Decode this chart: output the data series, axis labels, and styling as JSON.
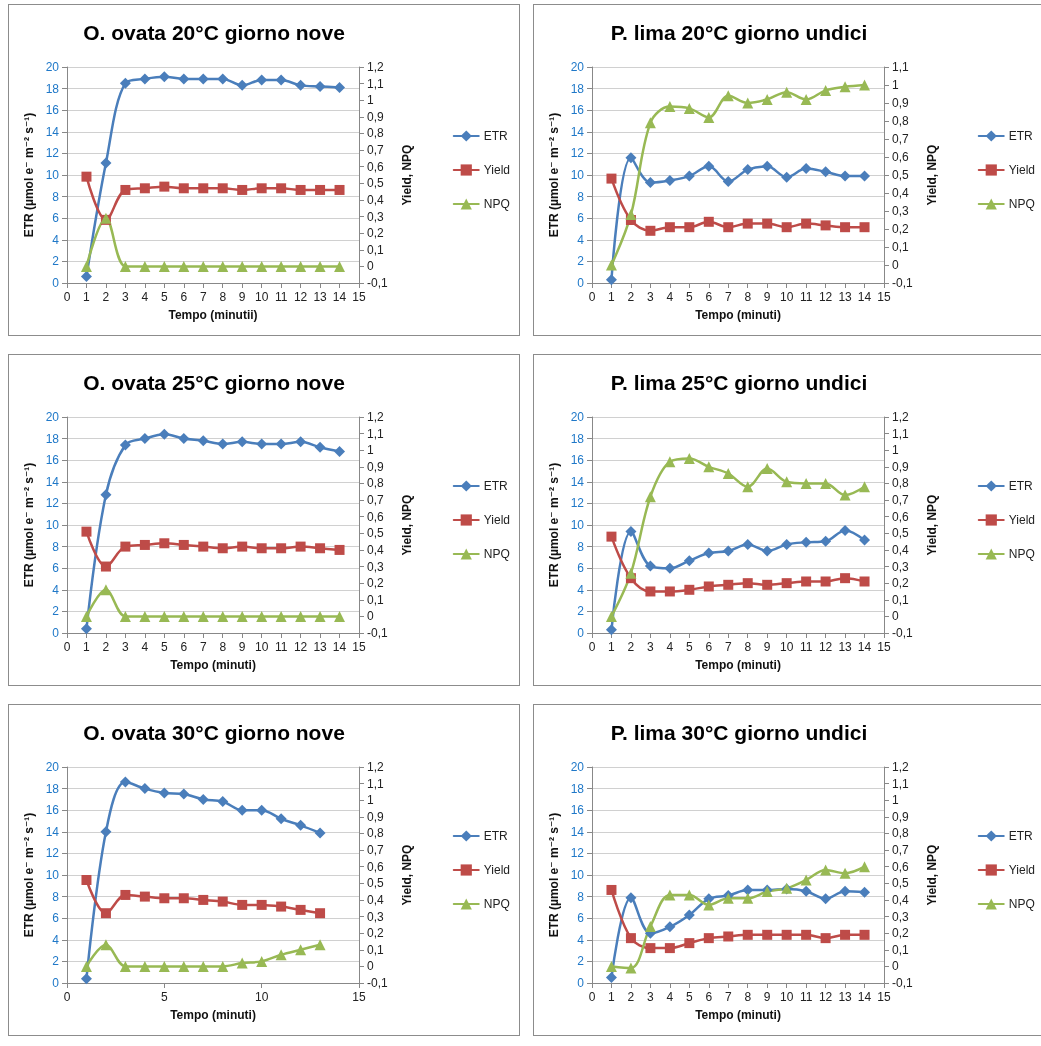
{
  "chart_data": [
    {
      "type": "line",
      "title": "O. ovata 20°C giorno nove",
      "xlabel": "Tempo (minutii)",
      "ylabel": "ETR (µmol e⁻ m⁻² s⁻¹)",
      "y2label": "Yield, NPQ",
      "x": [
        1,
        2,
        3,
        4,
        5,
        6,
        7,
        8,
        9,
        10,
        11,
        12,
        13,
        14
      ],
      "xlim": [
        0,
        15
      ],
      "xticks": [
        0,
        1,
        2,
        3,
        4,
        5,
        6,
        7,
        8,
        9,
        10,
        11,
        12,
        13,
        14,
        15
      ],
      "ylim": [
        0,
        20
      ],
      "yticks": [
        0,
        2,
        4,
        6,
        8,
        10,
        12,
        14,
        16,
        18,
        20
      ],
      "y2lim": [
        -0.1,
        1.2
      ],
      "y2ticks": [
        {
          "value": -0.1,
          "label": "-0,1"
        },
        {
          "value": 0,
          "label": "0"
        },
        {
          "value": 0.1,
          "label": "0,1"
        },
        {
          "value": 0.2,
          "label": "0,2"
        },
        {
          "value": 0.3,
          "label": "0,3"
        },
        {
          "value": 0.4,
          "label": "0,4"
        },
        {
          "value": 0.5,
          "label": "0,5"
        },
        {
          "value": 0.6,
          "label": "0,6"
        },
        {
          "value": 0.7,
          "label": "0,7"
        },
        {
          "value": 0.8,
          "label": "0,8"
        },
        {
          "value": 0.9,
          "label": "0,9"
        },
        {
          "value": 1,
          "label": "1"
        },
        {
          "value": 1.1,
          "label": "1,1"
        },
        {
          "value": 1.2,
          "label": "1,2"
        }
      ],
      "grid": "y",
      "legend": "right",
      "series": [
        {
          "name": "ETR",
          "color": "#4a7ebb",
          "marker": "diamond",
          "values": [
            0.6,
            11.1,
            18.5,
            18.9,
            19.1,
            18.9,
            18.9,
            18.9,
            18.3,
            18.8,
            18.8,
            18.3,
            18.2,
            18.1
          ]
        },
        {
          "name": "Yield",
          "color": "#be4b48",
          "marker": "square",
          "axis": "y2",
          "values": [
            0.54,
            0.28,
            0.46,
            0.47,
            0.48,
            0.47,
            0.47,
            0.47,
            0.46,
            0.47,
            0.47,
            0.46,
            0.46,
            0.46
          ]
        },
        {
          "name": "NPQ",
          "color": "#98b954",
          "marker": "triangle",
          "axis": "y2",
          "values": [
            0,
            0.29,
            0,
            0,
            0,
            0,
            0,
            0,
            0,
            0,
            0,
            0,
            0,
            0
          ]
        }
      ]
    },
    {
      "type": "line",
      "title": "P. lima 20°C giorno undici",
      "xlabel": "Tempo (minuti)",
      "ylabel": "ETR (µmol e⁻ m⁻² s⁻¹)",
      "y2label": "Yield, NPQ",
      "x": [
        1,
        2,
        3,
        4,
        5,
        6,
        7,
        8,
        9,
        10,
        11,
        12,
        13,
        14
      ],
      "xlim": [
        0,
        15
      ],
      "xticks": [
        0,
        1,
        2,
        3,
        4,
        5,
        6,
        7,
        8,
        9,
        10,
        11,
        12,
        13,
        14,
        15
      ],
      "ylim": [
        0,
        20
      ],
      "yticks": [
        0,
        2,
        4,
        6,
        8,
        10,
        12,
        14,
        16,
        18,
        20
      ],
      "y2lim": [
        -0.1,
        1.1
      ],
      "y2ticks": [
        {
          "value": -0.1,
          "label": "-0,1"
        },
        {
          "value": 0,
          "label": "0"
        },
        {
          "value": 0.1,
          "label": "0,1"
        },
        {
          "value": 0.2,
          "label": "0,2"
        },
        {
          "value": 0.3,
          "label": "0,3"
        },
        {
          "value": 0.4,
          "label": "0,4"
        },
        {
          "value": 0.5,
          "label": "0,5"
        },
        {
          "value": 0.6,
          "label": "0,6"
        },
        {
          "value": 0.7,
          "label": "0,7"
        },
        {
          "value": 0.8,
          "label": "0,8"
        },
        {
          "value": 0.9,
          "label": "0,9"
        },
        {
          "value": 1,
          "label": "1"
        },
        {
          "value": 1.1,
          "label": "1,1"
        }
      ],
      "grid": "y",
      "legend": "right",
      "series": [
        {
          "name": "ETR",
          "color": "#4a7ebb",
          "marker": "diamond",
          "values": [
            0.3,
            11.6,
            9.3,
            9.5,
            9.9,
            10.8,
            9.4,
            10.5,
            10.8,
            9.8,
            10.6,
            10.3,
            9.9,
            9.9
          ]
        },
        {
          "name": "Yield",
          "color": "#be4b48",
          "marker": "square",
          "axis": "y2",
          "values": [
            0.48,
            0.25,
            0.19,
            0.21,
            0.21,
            0.24,
            0.21,
            0.23,
            0.23,
            0.21,
            0.23,
            0.22,
            0.21,
            0.21
          ]
        },
        {
          "name": "NPQ",
          "color": "#98b954",
          "marker": "triangle",
          "axis": "y2",
          "values": [
            0,
            0.28,
            0.79,
            0.88,
            0.87,
            0.82,
            0.94,
            0.9,
            0.92,
            0.96,
            0.92,
            0.97,
            0.99,
            1.0
          ]
        }
      ]
    },
    {
      "type": "line",
      "title": "O. ovata 25°C giorno nove",
      "xlabel": "Tempo (minuti)",
      "ylabel": "ETR (µmol e⁻ m⁻² s⁻¹)",
      "y2label": "Yield, NPQ",
      "x": [
        1,
        2,
        3,
        4,
        5,
        6,
        7,
        8,
        9,
        10,
        11,
        12,
        13,
        14
      ],
      "xlim": [
        0,
        15
      ],
      "xticks": [
        0,
        1,
        2,
        3,
        4,
        5,
        6,
        7,
        8,
        9,
        10,
        11,
        12,
        13,
        14,
        15
      ],
      "ylim": [
        0,
        20
      ],
      "yticks": [
        0,
        2,
        4,
        6,
        8,
        10,
        12,
        14,
        16,
        18,
        20
      ],
      "y2lim": [
        -0.1,
        1.2
      ],
      "y2ticks": [
        {
          "value": -0.1,
          "label": "-0,1"
        },
        {
          "value": 0,
          "label": "0"
        },
        {
          "value": 0.1,
          "label": "0,1"
        },
        {
          "value": 0.2,
          "label": "0,2"
        },
        {
          "value": 0.3,
          "label": "0,3"
        },
        {
          "value": 0.4,
          "label": "0,4"
        },
        {
          "value": 0.5,
          "label": "0,5"
        },
        {
          "value": 0.6,
          "label": "0,6"
        },
        {
          "value": 0.7,
          "label": "0,7"
        },
        {
          "value": 0.8,
          "label": "0,8"
        },
        {
          "value": 0.9,
          "label": "0,9"
        },
        {
          "value": 1,
          "label": "1"
        },
        {
          "value": 1.1,
          "label": "1,1"
        },
        {
          "value": 1.2,
          "label": "1,2"
        }
      ],
      "grid": "y",
      "legend": "right",
      "series": [
        {
          "name": "ETR",
          "color": "#4a7ebb",
          "marker": "diamond",
          "values": [
            0.4,
            12.8,
            17.4,
            18.0,
            18.4,
            18.0,
            17.8,
            17.5,
            17.7,
            17.5,
            17.5,
            17.7,
            17.2,
            16.8
          ]
        },
        {
          "name": "Yield",
          "color": "#be4b48",
          "marker": "square",
          "axis": "y2",
          "values": [
            0.51,
            0.3,
            0.42,
            0.43,
            0.44,
            0.43,
            0.42,
            0.41,
            0.42,
            0.41,
            0.41,
            0.42,
            0.41,
            0.4
          ]
        },
        {
          "name": "NPQ",
          "color": "#98b954",
          "marker": "triangle",
          "axis": "y2",
          "values": [
            0,
            0.16,
            0,
            0,
            0,
            0,
            0,
            0,
            0,
            0,
            0,
            0,
            0,
            0
          ]
        }
      ]
    },
    {
      "type": "line",
      "title": "P. lima 25°C giorno undici",
      "xlabel": "Tempo (minuti)",
      "ylabel": "ETR (µmol e⁻ m⁻² s⁻¹)",
      "y2label": "Yield, NPQ",
      "x": [
        1,
        2,
        3,
        4,
        5,
        6,
        7,
        8,
        9,
        10,
        11,
        12,
        13,
        14
      ],
      "xlim": [
        0,
        15
      ],
      "xticks": [
        0,
        1,
        2,
        3,
        4,
        5,
        6,
        7,
        8,
        9,
        10,
        11,
        12,
        13,
        14,
        15
      ],
      "ylim": [
        0,
        20
      ],
      "yticks": [
        0,
        2,
        4,
        6,
        8,
        10,
        12,
        14,
        16,
        18,
        20
      ],
      "y2lim": [
        -0.1,
        1.2
      ],
      "y2ticks": [
        {
          "value": -0.1,
          "label": "-0,1"
        },
        {
          "value": 0,
          "label": "0"
        },
        {
          "value": 0.1,
          "label": "0,1"
        },
        {
          "value": 0.2,
          "label": "0,2"
        },
        {
          "value": 0.3,
          "label": "0,3"
        },
        {
          "value": 0.4,
          "label": "0,4"
        },
        {
          "value": 0.5,
          "label": "0,5"
        },
        {
          "value": 0.6,
          "label": "0,6"
        },
        {
          "value": 0.7,
          "label": "0,7"
        },
        {
          "value": 0.8,
          "label": "0,8"
        },
        {
          "value": 0.9,
          "label": "0,9"
        },
        {
          "value": 1,
          "label": "1"
        },
        {
          "value": 1.1,
          "label": "1,1"
        },
        {
          "value": 1.2,
          "label": "1,2"
        }
      ],
      "grid": "y",
      "legend": "right",
      "series": [
        {
          "name": "ETR",
          "color": "#4a7ebb",
          "marker": "diamond",
          "values": [
            0.3,
            9.4,
            6.2,
            6.0,
            6.7,
            7.4,
            7.6,
            8.2,
            7.6,
            8.2,
            8.4,
            8.5,
            9.5,
            8.6
          ]
        },
        {
          "name": "Yield",
          "color": "#be4b48",
          "marker": "square",
          "axis": "y2",
          "values": [
            0.48,
            0.23,
            0.15,
            0.15,
            0.16,
            0.18,
            0.19,
            0.2,
            0.19,
            0.2,
            0.21,
            0.21,
            0.23,
            0.21
          ]
        },
        {
          "name": "NPQ",
          "color": "#98b954",
          "marker": "triangle",
          "axis": "y2",
          "values": [
            0,
            0.26,
            0.72,
            0.93,
            0.95,
            0.9,
            0.86,
            0.78,
            0.89,
            0.81,
            0.8,
            0.8,
            0.73,
            0.78
          ]
        }
      ]
    },
    {
      "type": "line",
      "title": "O. ovata 30°C giorno nove",
      "xlabel": "Tempo (minuti)",
      "ylabel": "ETR (µmol e⁻ m⁻² s⁻¹)",
      "y2label": "Yield, NPQ",
      "x": [
        1,
        2,
        3,
        4,
        5,
        6,
        7,
        8,
        9,
        10,
        11,
        12,
        13
      ],
      "xlim": [
        0,
        15
      ],
      "xticks": [
        0,
        5,
        10,
        15
      ],
      "ylim": [
        0,
        20
      ],
      "yticks": [
        0,
        2,
        4,
        6,
        8,
        10,
        12,
        14,
        16,
        18,
        20
      ],
      "y2lim": [
        -0.1,
        1.2
      ],
      "y2ticks": [
        {
          "value": -0.1,
          "label": "-0,1"
        },
        {
          "value": 0,
          "label": "0"
        },
        {
          "value": 0.1,
          "label": "0,1"
        },
        {
          "value": 0.2,
          "label": "0,2"
        },
        {
          "value": 0.3,
          "label": "0,3"
        },
        {
          "value": 0.4,
          "label": "0,4"
        },
        {
          "value": 0.5,
          "label": "0,5"
        },
        {
          "value": 0.6,
          "label": "0,6"
        },
        {
          "value": 0.7,
          "label": "0,7"
        },
        {
          "value": 0.8,
          "label": "0,8"
        },
        {
          "value": 0.9,
          "label": "0,9"
        },
        {
          "value": 1,
          "label": "1"
        },
        {
          "value": 1.1,
          "label": "1,1"
        },
        {
          "value": 1.2,
          "label": "1,2"
        }
      ],
      "grid": "y",
      "legend": "right",
      "series": [
        {
          "name": "ETR",
          "color": "#4a7ebb",
          "marker": "diamond",
          "values": [
            0.4,
            14.0,
            18.6,
            18.0,
            17.6,
            17.5,
            17.0,
            16.8,
            16.0,
            16.0,
            15.2,
            14.6,
            13.9
          ]
        },
        {
          "name": "Yield",
          "color": "#be4b48",
          "marker": "square",
          "axis": "y2",
          "values": [
            0.52,
            0.32,
            0.43,
            0.42,
            0.41,
            0.41,
            0.4,
            0.39,
            0.37,
            0.37,
            0.36,
            0.34,
            0.32
          ]
        },
        {
          "name": "NPQ",
          "color": "#98b954",
          "marker": "triangle",
          "axis": "y2",
          "values": [
            0,
            0.13,
            0,
            0,
            0,
            0,
            0,
            0,
            0.02,
            0.03,
            0.07,
            0.1,
            0.13
          ]
        }
      ]
    },
    {
      "type": "line",
      "title": "P. lima 30°C giorno undici",
      "xlabel": "Tempo (minuti)",
      "ylabel": "ETR (µmol e⁻ m⁻² s⁻¹)",
      "y2label": "Yield, NPQ",
      "x": [
        1,
        2,
        3,
        4,
        5,
        6,
        7,
        8,
        9,
        10,
        11,
        12,
        13,
        14
      ],
      "xlim": [
        0,
        15
      ],
      "xticks": [
        0,
        1,
        2,
        3,
        4,
        5,
        6,
        7,
        8,
        9,
        10,
        11,
        12,
        13,
        14,
        15
      ],
      "ylim": [
        0,
        20
      ],
      "yticks": [
        0,
        2,
        4,
        6,
        8,
        10,
        12,
        14,
        16,
        18,
        20
      ],
      "y2lim": [
        -0.1,
        1.2
      ],
      "y2ticks": [
        {
          "value": -0.1,
          "label": "-0,1"
        },
        {
          "value": 0,
          "label": "0"
        },
        {
          "value": 0.1,
          "label": "0,1"
        },
        {
          "value": 0.2,
          "label": "0,2"
        },
        {
          "value": 0.3,
          "label": "0,3"
        },
        {
          "value": 0.4,
          "label": "0,4"
        },
        {
          "value": 0.5,
          "label": "0,5"
        },
        {
          "value": 0.6,
          "label": "0,6"
        },
        {
          "value": 0.7,
          "label": "0,7"
        },
        {
          "value": 0.8,
          "label": "0,8"
        },
        {
          "value": 0.9,
          "label": "0,9"
        },
        {
          "value": 1,
          "label": "1"
        },
        {
          "value": 1.1,
          "label": "1,1"
        },
        {
          "value": 1.2,
          "label": "1,2"
        }
      ],
      "grid": "y",
      "legend": "right",
      "series": [
        {
          "name": "ETR",
          "color": "#4a7ebb",
          "marker": "diamond",
          "values": [
            0.5,
            7.9,
            4.6,
            5.2,
            6.3,
            7.8,
            8.1,
            8.6,
            8.6,
            8.7,
            8.5,
            7.8,
            8.5,
            8.4
          ]
        },
        {
          "name": "Yield",
          "color": "#be4b48",
          "marker": "square",
          "axis": "y2",
          "values": [
            0.46,
            0.17,
            0.11,
            0.11,
            0.14,
            0.17,
            0.18,
            0.19,
            0.19,
            0.19,
            0.19,
            0.17,
            0.19,
            0.19
          ]
        },
        {
          "name": "NPQ",
          "color": "#98b954",
          "marker": "triangle",
          "axis": "y2",
          "values": [
            0,
            -0.01,
            0.24,
            0.43,
            0.43,
            0.37,
            0.41,
            0.41,
            0.45,
            0.47,
            0.52,
            0.58,
            0.56,
            0.6
          ]
        }
      ]
    }
  ]
}
